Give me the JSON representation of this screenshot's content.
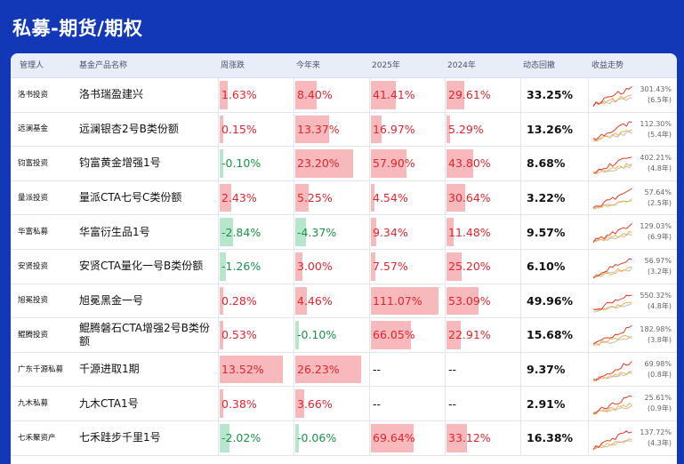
{
  "title": "私募-期货/期权",
  "colors": {
    "background": "#1238b8",
    "positive": "#e0262f",
    "negative": "#179447",
    "positive_bar": "#f8b9bd",
    "negative_bar": "#b8e6cc"
  },
  "headers": {
    "manager": "管理人",
    "fund": "基金产品名称",
    "week": "周涨跌",
    "ytd": "今年来",
    "y2025": "2025年",
    "y2024": "2024年",
    "drawdown": "动态回撤",
    "trend": "收益走势"
  },
  "rows": [
    {
      "manager": "洛书投资",
      "fund": "洛书瑞盈建兴",
      "week": {
        "text": "1.63%",
        "value": 1.63
      },
      "ytd": {
        "text": "8.40%",
        "value": 8.4
      },
      "y2025": {
        "text": "41.41%",
        "value": 41.41
      },
      "y2024": {
        "text": "29.61%",
        "value": 29.61
      },
      "drawdown": "33.25%",
      "total": "301.43%",
      "years": "(6.5年)",
      "spark_icon": "trend-sparkline-icon"
    },
    {
      "manager": "远澜基金",
      "fund": "远澜银杏2号B类份额",
      "week": {
        "text": "0.15%",
        "value": 0.15
      },
      "ytd": {
        "text": "13.37%",
        "value": 13.37
      },
      "y2025": {
        "text": "16.97%",
        "value": 16.97
      },
      "y2024": {
        "text": "5.29%",
        "value": 5.29
      },
      "drawdown": "13.26%",
      "total": "112.30%",
      "years": "(5.4年)",
      "spark_icon": "trend-sparkline-icon"
    },
    {
      "manager": "钧富投资",
      "fund": "钧富黄金增强1号",
      "week": {
        "text": "-0.10%",
        "value": -0.1
      },
      "ytd": {
        "text": "23.20%",
        "value": 23.2
      },
      "y2025": {
        "text": "57.90%",
        "value": 57.9
      },
      "y2024": {
        "text": "43.80%",
        "value": 43.8
      },
      "drawdown": "8.68%",
      "total": "402.21%",
      "years": "(4.8年)",
      "spark_icon": "trend-sparkline-icon"
    },
    {
      "manager": "量派投资",
      "fund": "量派CTA七号C类份额",
      "week": {
        "text": "2.43%",
        "value": 2.43
      },
      "ytd": {
        "text": "5.25%",
        "value": 5.25
      },
      "y2025": {
        "text": "4.54%",
        "value": 4.54
      },
      "y2024": {
        "text": "30.64%",
        "value": 30.64
      },
      "drawdown": "3.22%",
      "total": "57.64%",
      "years": "(2.5年)",
      "spark_icon": "trend-sparkline-icon"
    },
    {
      "manager": "华富私募",
      "fund": "华富衍生品1号",
      "week": {
        "text": "-2.84%",
        "value": -2.84
      },
      "ytd": {
        "text": "-4.37%",
        "value": -4.37
      },
      "y2025": {
        "text": "9.34%",
        "value": 9.34
      },
      "y2024": {
        "text": "11.48%",
        "value": 11.48
      },
      "drawdown": "9.57%",
      "total": "129.03%",
      "years": "(6.9年)",
      "spark_icon": "trend-sparkline-icon"
    },
    {
      "manager": "安贤投资",
      "fund": "安贤CTA量化一号B类份额",
      "week": {
        "text": "-1.26%",
        "value": -1.26
      },
      "ytd": {
        "text": "3.00%",
        "value": 3.0
      },
      "y2025": {
        "text": "7.57%",
        "value": 7.57
      },
      "y2024": {
        "text": "25.20%",
        "value": 25.2
      },
      "drawdown": "6.10%",
      "total": "56.97%",
      "years": "(3.2年)",
      "spark_icon": "trend-sparkline-icon"
    },
    {
      "manager": "旭冕投资",
      "fund": "旭冕黑金一号",
      "week": {
        "text": "0.28%",
        "value": 0.28
      },
      "ytd": {
        "text": "4.46%",
        "value": 4.46
      },
      "y2025": {
        "text": "111.07%",
        "value": 111.07
      },
      "y2024": {
        "text": "53.09%",
        "value": 53.09
      },
      "drawdown": "49.96%",
      "total": "550.32%",
      "years": "(4.8年)",
      "spark_icon": "trend-sparkline-icon"
    },
    {
      "manager": "鲲腾投资",
      "fund": "鲲腾磐石CTA增强2号B类份额",
      "week": {
        "text": "0.53%",
        "value": 0.53
      },
      "ytd": {
        "text": "-0.10%",
        "value": -0.1
      },
      "y2025": {
        "text": "66.05%",
        "value": 66.05
      },
      "y2024": {
        "text": "22.91%",
        "value": 22.91
      },
      "drawdown": "15.68%",
      "total": "182.98%",
      "years": "(3.8年)",
      "spark_icon": "trend-sparkline-icon"
    },
    {
      "manager": "广东千源私募",
      "fund": "千源进取1期",
      "week": {
        "text": "13.52%",
        "value": 13.52
      },
      "ytd": {
        "text": "26.23%",
        "value": 26.23
      },
      "y2025": {
        "text": "--",
        "value": null
      },
      "y2024": {
        "text": "--",
        "value": null
      },
      "drawdown": "9.37%",
      "total": "69.98%",
      "years": "(0.8年)",
      "spark_icon": "trend-sparkline-icon"
    },
    {
      "manager": "九木私募",
      "fund": "九木CTA1号",
      "week": {
        "text": "0.38%",
        "value": 0.38
      },
      "ytd": {
        "text": "3.66%",
        "value": 3.66
      },
      "y2025": {
        "text": "--",
        "value": null
      },
      "y2024": {
        "text": "--",
        "value": null
      },
      "drawdown": "2.91%",
      "total": "25.61%",
      "years": "(0.9年)",
      "spark_icon": "trend-sparkline-icon"
    },
    {
      "manager": "七禾聚资产",
      "fund": "七禾跬步千里1号",
      "week": {
        "text": "-2.02%",
        "value": -2.02
      },
      "ytd": {
        "text": "-0.06%",
        "value": -0.06
      },
      "y2025": {
        "text": "69.64%",
        "value": 69.64
      },
      "y2024": {
        "text": "33.12%",
        "value": 33.12
      },
      "drawdown": "16.38%",
      "total": "137.72%",
      "years": "(4.3年)",
      "spark_icon": "trend-sparkline-icon"
    }
  ]
}
